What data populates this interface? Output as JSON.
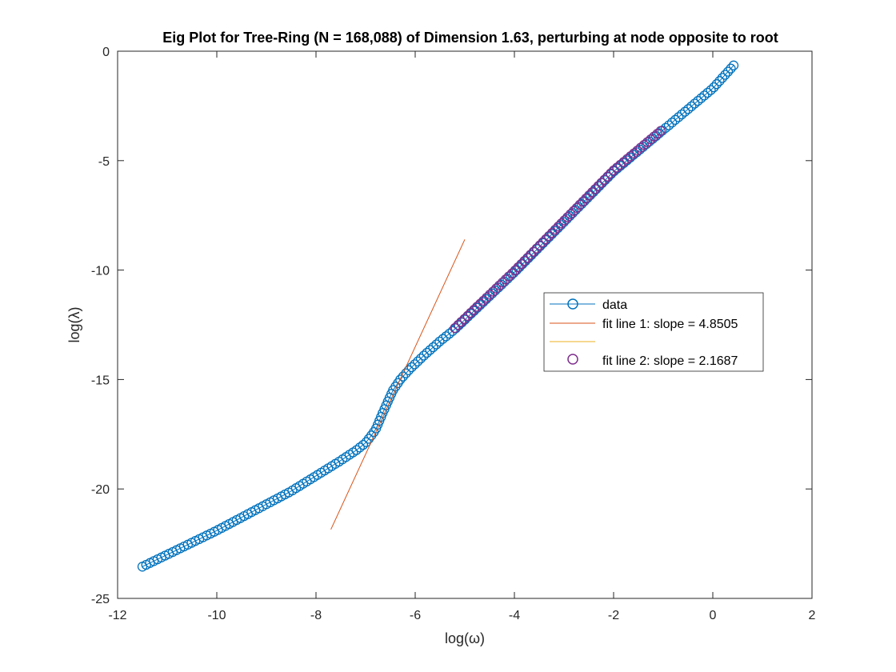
{
  "chart_data": {
    "type": "scatter",
    "title": "Eig Plot for Tree-Ring (N = 168,088) of Dimension 1.63, perturbing at node opposite to root",
    "xlabel": "log(ω)",
    "ylabel": "log(λ)",
    "xlim": [
      -12,
      2
    ],
    "ylim": [
      -25,
      0
    ],
    "xticks": [
      -12,
      -10,
      -8,
      -6,
      -4,
      -2,
      0,
      2
    ],
    "yticks": [
      0,
      -5,
      -10,
      -15,
      -20,
      -25
    ],
    "grid": false,
    "legend_position": "center-right",
    "colors": {
      "data": "#0072BD",
      "fit_line_1": "#D95319",
      "fit_line_1b": "#EDB120",
      "fit_line_2": "#7E2F8E"
    },
    "curve_knots": [
      [
        -11.5,
        -23.55
      ],
      [
        -11.0,
        -23.0
      ],
      [
        -10.5,
        -22.45
      ],
      [
        -10.0,
        -21.9
      ],
      [
        -9.5,
        -21.3
      ],
      [
        -9.0,
        -20.7
      ],
      [
        -8.5,
        -20.1
      ],
      [
        -8.0,
        -19.4
      ],
      [
        -7.5,
        -18.7
      ],
      [
        -7.2,
        -18.25
      ],
      [
        -7.0,
        -17.9
      ],
      [
        -6.8,
        -17.3
      ],
      [
        -6.65,
        -16.5
      ],
      [
        -6.55,
        -16.0
      ],
      [
        -6.45,
        -15.5
      ],
      [
        -6.3,
        -15.0
      ],
      [
        -6.1,
        -14.5
      ],
      [
        -5.8,
        -13.85
      ],
      [
        -5.5,
        -13.25
      ],
      [
        -5.2,
        -12.7
      ],
      [
        -4.0,
        -10.1
      ],
      [
        -2.0,
        -5.5
      ],
      [
        0.0,
        -1.7
      ],
      [
        0.42,
        -0.65
      ]
    ],
    "series": [
      {
        "name": "data",
        "marker": "circle",
        "x_start": -11.5,
        "x_end": 0.42,
        "point_count": 188
      },
      {
        "name": "fit line 1: slope = 4.8505",
        "style": "line",
        "slope": 4.8505,
        "x": [
          -7.7,
          -5.0
        ],
        "y": [
          -21.85,
          -8.6
        ]
      },
      {
        "name": "",
        "style": "line"
      },
      {
        "name": "fit line 2: slope = 2.1687",
        "marker": "circle",
        "slope": 2.1687,
        "x_start": -5.2,
        "x_end": -1.05,
        "point_count": 66
      }
    ]
  }
}
